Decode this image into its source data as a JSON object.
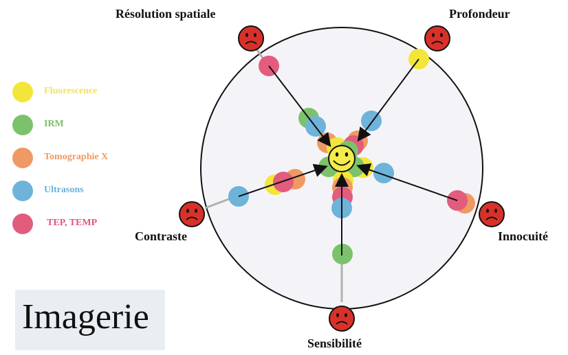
{
  "axes": [
    {
      "key": "resolution",
      "label": "Résolution spatiale"
    },
    {
      "key": "profondeur",
      "label": "Profondeur"
    },
    {
      "key": "contraste",
      "label": "Contraste"
    },
    {
      "key": "innocuite",
      "label": "Innocuité"
    },
    {
      "key": "sensibilite",
      "label": "Sensibilité"
    }
  ],
  "legend": [
    {
      "name": "Fluorescence",
      "color": "#f2e63b",
      "text_color": "#ede26a"
    },
    {
      "name": "IRM",
      "color": "#7cc26c",
      "text_color": "#7cbf6a"
    },
    {
      "name": "Tomographie X",
      "color": "#ef9a64",
      "text_color": "#ee9a62"
    },
    {
      "name": "Ultrasons",
      "color": "#6eb3d9",
      "text_color": "#6ab0d7"
    },
    {
      "name": "TEP, TEMP",
      "color": "#e25c7d",
      "text_color": "#e0577a"
    }
  ],
  "title": "Imagerie",
  "colors": {
    "circle_fill": "#f4f4f8",
    "frown_face": "#d9312a",
    "smiley_face": "#f4ec4a",
    "arrow": "#111111",
    "axis_line": "#b0b0b0"
  }
}
